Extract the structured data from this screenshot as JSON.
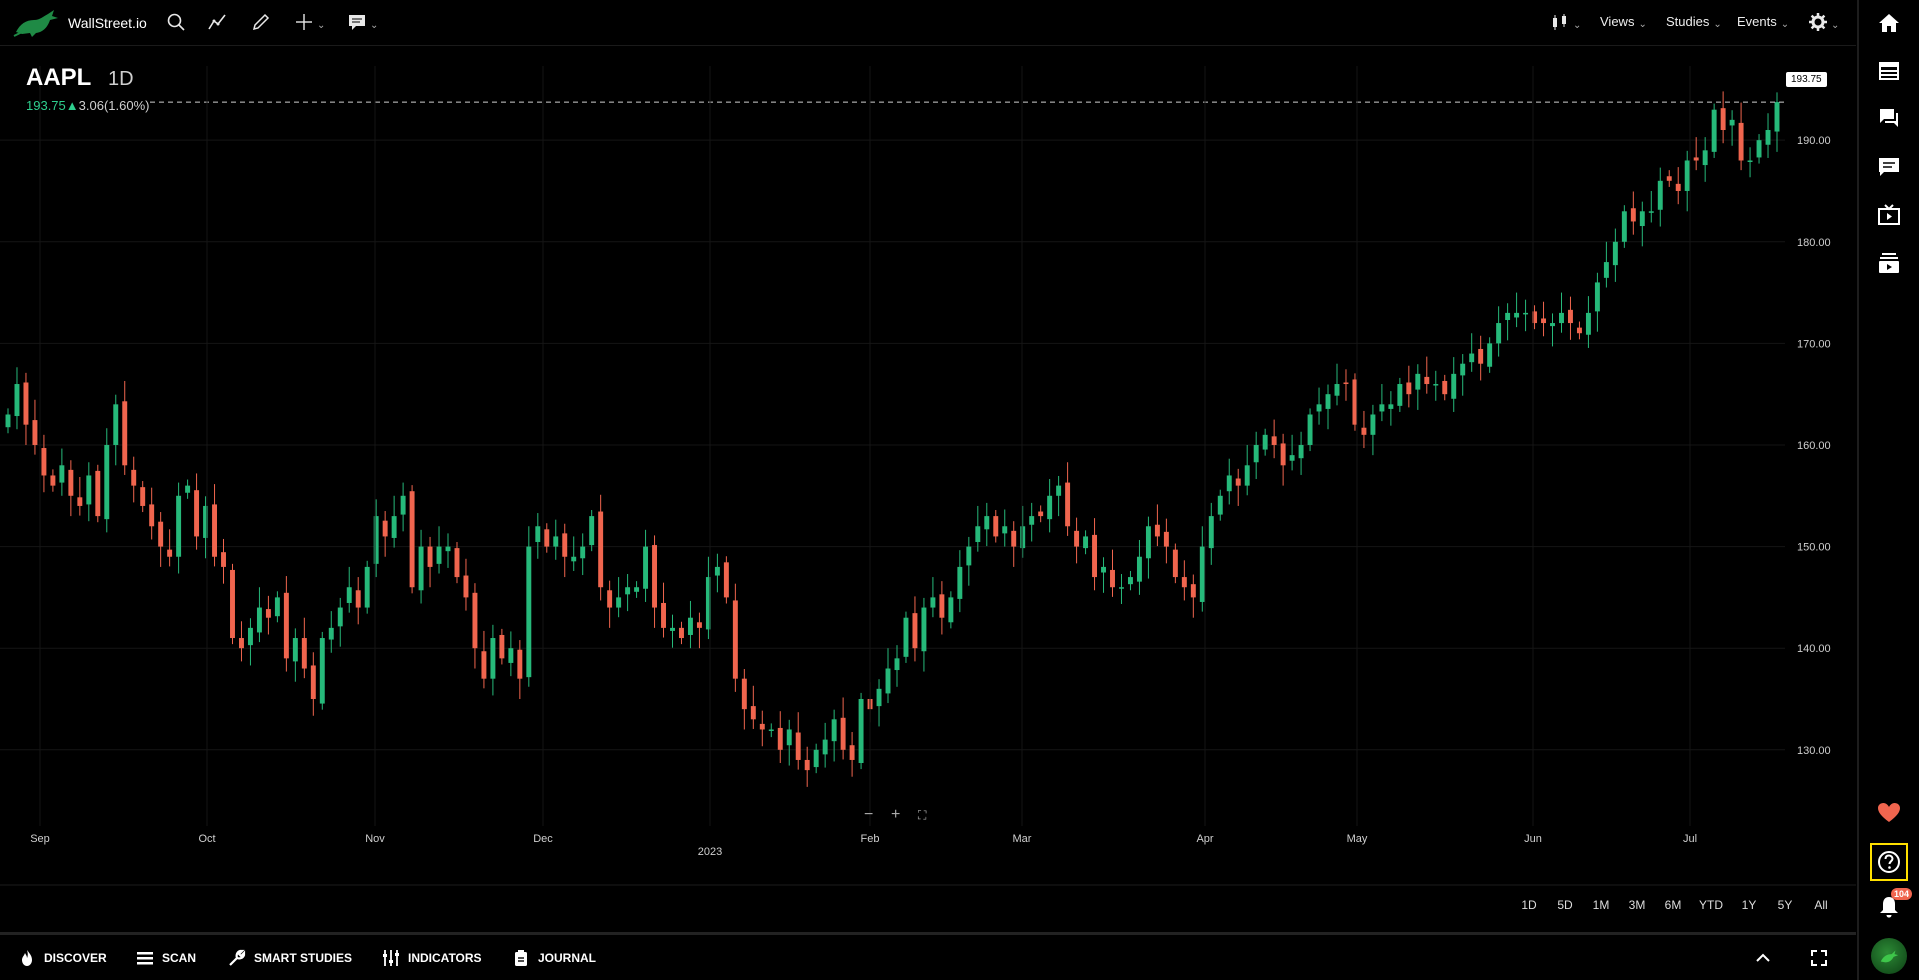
{
  "header": {
    "brand": "WallStreet.io",
    "menus": [
      {
        "label": "Views"
      },
      {
        "label": "Studies"
      },
      {
        "label": "Events"
      }
    ]
  },
  "chart_info": {
    "symbol": "AAPL",
    "interval": "1D",
    "price": "193.75",
    "change": "3.06(1.60%)",
    "last_price_tag": "193.75"
  },
  "colors": {
    "up": "#26b97a",
    "down": "#f0654e",
    "grid": "#151515"
  },
  "chart_data": {
    "type": "candlestick",
    "y_ticks": [
      "190.00",
      "180.00",
      "170.00",
      "160.00",
      "150.00",
      "140.00",
      "130.00"
    ],
    "y_tick_values": [
      190,
      180,
      170,
      160,
      150,
      140,
      130
    ],
    "ylim": [
      122.5,
      197.3
    ],
    "x_months": [
      "Sep",
      "Oct",
      "Nov",
      "Dec",
      "2023",
      "Feb",
      "Mar",
      "Apr",
      "May",
      "Jun",
      "Jul"
    ],
    "last_price": 193.75,
    "closes": [
      163,
      166,
      162,
      160,
      157,
      156,
      158,
      155,
      154,
      157,
      153,
      160,
      164,
      158,
      156,
      154,
      152,
      150,
      149,
      155,
      156,
      151,
      154,
      149,
      148,
      141,
      140,
      142,
      144,
      143,
      145,
      139,
      141,
      138,
      135,
      141,
      142,
      144,
      146,
      144,
      148,
      153,
      151,
      153,
      155,
      146,
      150,
      148,
      150,
      150,
      147,
      145,
      140,
      137,
      141,
      139,
      140,
      137,
      150,
      152,
      150,
      151,
      149,
      149,
      150,
      153,
      146,
      144,
      145,
      146,
      146,
      150,
      144,
      142,
      142,
      141,
      143,
      142,
      147,
      148,
      145,
      137,
      134,
      133,
      132,
      132,
      130,
      132,
      129,
      128,
      130,
      131,
      133,
      130,
      129,
      135,
      134,
      136,
      138,
      139,
      143,
      140,
      144,
      145,
      143,
      145,
      148,
      150,
      152,
      153,
      151,
      152,
      150,
      152,
      153,
      153,
      155,
      156,
      152,
      150,
      151,
      147,
      148,
      146,
      146,
      147,
      149,
      152,
      151,
      150,
      147,
      146,
      145,
      150,
      153,
      155,
      157,
      156,
      158,
      160,
      161,
      160,
      158,
      159,
      160,
      163,
      164,
      165,
      166,
      166,
      162,
      161,
      163,
      164,
      164,
      166,
      165,
      167,
      166,
      166,
      165,
      167,
      168,
      169,
      168,
      170,
      172,
      173,
      173,
      173,
      172,
      172,
      172,
      173,
      172,
      171,
      173,
      176,
      178,
      180,
      183,
      182,
      183,
      183,
      186,
      186,
      185,
      188,
      188,
      189,
      193,
      191,
      192,
      188,
      188,
      190,
      191,
      193.75
    ]
  },
  "ranges": [
    "1D",
    "5D",
    "1M",
    "3M",
    "6M",
    "YTD",
    "1Y",
    "5Y",
    "All"
  ],
  "bottom_nav": [
    {
      "label": "DISCOVER"
    },
    {
      "label": "SCAN"
    },
    {
      "label": "SMART STUDIES"
    },
    {
      "label": "INDICATORS"
    },
    {
      "label": "JOURNAL"
    }
  ],
  "sidebar": {
    "notification_count": "104"
  }
}
